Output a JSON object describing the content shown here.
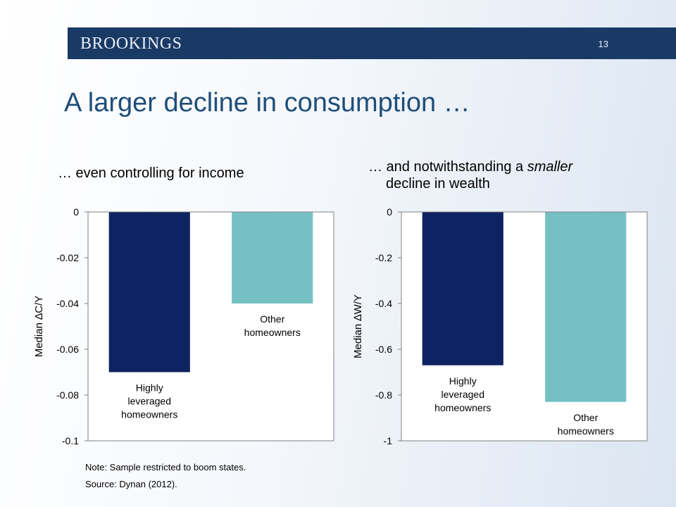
{
  "header": {
    "brand": "BROOKINGS",
    "page_number": "13"
  },
  "slide": {
    "title": "A larger decline in consumption …",
    "subtitle_left": "… even controlling for income",
    "subtitle_right_line1": "… and notwithstanding a ",
    "subtitle_right_emph": "smaller",
    "subtitle_right_line2": "decline in wealth"
  },
  "notes": {
    "note": "Note: Sample restricted to boom states.",
    "source": "Source: Dynan (2012)."
  },
  "colors": {
    "banner": "#1a3a66",
    "title": "#1f4e79",
    "highly_leveraged": "#0e2361",
    "other": "#76c0c4"
  },
  "chart_data": [
    {
      "type": "bar",
      "title": "… even controlling for income",
      "xlabel": "",
      "ylabel": "Median ∆C/Y",
      "ylim": [
        -0.1,
        0
      ],
      "yticks": [
        0,
        -0.02,
        -0.04,
        -0.06,
        -0.08,
        -0.1
      ],
      "ytick_labels": [
        "0",
        "-0.02",
        "-0.04",
        "-0.06",
        "-0.08",
        "-0.1"
      ],
      "grid": false,
      "categories": [
        [
          "Highly",
          "leveraged",
          "homeowners"
        ],
        [
          "Other",
          "homeowners"
        ]
      ],
      "values": [
        -0.07,
        -0.04
      ],
      "bar_colors": [
        "#0e2361",
        "#76c0c4"
      ]
    },
    {
      "type": "bar",
      "title": "… and notwithstanding a smaller decline in wealth",
      "xlabel": "",
      "ylabel": "Median ∆W/Y",
      "ylim": [
        -1,
        0
      ],
      "yticks": [
        0,
        -0.2,
        -0.4,
        -0.6,
        -0.8,
        -1
      ],
      "ytick_labels": [
        "0",
        "-0.2",
        "-0.4",
        "-0.6",
        "-0.8",
        "-1"
      ],
      "grid": false,
      "categories": [
        [
          "Highly",
          "leveraged",
          "homeowners"
        ],
        [
          "Other",
          "homeowners"
        ]
      ],
      "values": [
        -0.67,
        -0.83
      ],
      "bar_colors": [
        "#0e2361",
        "#76c0c4"
      ]
    }
  ]
}
